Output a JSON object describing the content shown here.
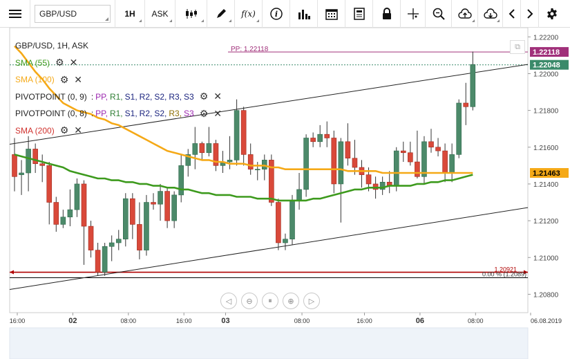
{
  "toolbar": {
    "symbol": "GBP/USD",
    "timeframe": "1H",
    "price_type": "ASK"
  },
  "legend": {
    "title": "GBP/USD, 1H, ASK",
    "sma55": "SMA (55)",
    "sma100": "SMA (100)",
    "pivot9_name": "PIVOTPOINT (0, 9)",
    "pivot8_name": "PIVOTPOINT (0, 8)",
    "pivot_sep": ":",
    "pivot_levels": [
      "PP,",
      "R1,",
      "S1,",
      "R2,",
      "S2,",
      "R3,",
      "S3"
    ],
    "sma200": "SMA (200)"
  },
  "price_tags": {
    "pp": "1.22118",
    "last": "1.22048",
    "sma": "1.21463"
  },
  "pp_label": "PP: 1.22118",
  "fib_label": "0.00 % (1.2089)",
  "fib_overlap_label": "1.20921",
  "colors": {
    "bull": "#4c8a6a",
    "bear": "#d9493a",
    "sma55": "#3d9a1d",
    "sma100": "#f5a917",
    "sma200": "#b00000",
    "pp": "#a0307a",
    "pivot_pp": "#9c27b0",
    "pivot_r": "#2e7d32",
    "pivot_s": "#1a237e",
    "pivot_r3": "#8d6e00"
  },
  "chart_data": {
    "type": "candlestick",
    "symbol": "GBP/USD",
    "timeframe": "1H",
    "ylim": [
      1.207,
      1.2225
    ],
    "y_ticks": [
      "1.22200",
      "1.22000",
      "1.21800",
      "1.21600",
      "1.21400",
      "1.21200",
      "1.21000",
      "1.20800"
    ],
    "x_ticks": [
      "16:00",
      "02",
      "08:00",
      "16:00",
      "03",
      "08:00",
      "16:00",
      "06",
      "08:00",
      "06.08.2019"
    ],
    "candles": [
      {
        "o": 1.2156,
        "h": 1.2165,
        "l": 1.2136,
        "c": 1.2144
      },
      {
        "o": 1.2145,
        "h": 1.2153,
        "l": 1.2134,
        "c": 1.2146
      },
      {
        "o": 1.2146,
        "h": 1.2166,
        "l": 1.2136,
        "c": 1.2159
      },
      {
        "o": 1.2159,
        "h": 1.2162,
        "l": 1.2146,
        "c": 1.2151
      },
      {
        "o": 1.2151,
        "h": 1.2156,
        "l": 1.2141,
        "c": 1.215
      },
      {
        "o": 1.215,
        "h": 1.2152,
        "l": 1.2118,
        "c": 1.213
      },
      {
        "o": 1.213,
        "h": 1.2133,
        "l": 1.2114,
        "c": 1.2118
      },
      {
        "o": 1.2118,
        "h": 1.2126,
        "l": 1.2116,
        "c": 1.2122
      },
      {
        "o": 1.2122,
        "h": 1.2137,
        "l": 1.2117,
        "c": 1.2126
      },
      {
        "o": 1.2126,
        "h": 1.2143,
        "l": 1.2122,
        "c": 1.214
      },
      {
        "o": 1.214,
        "h": 1.2142,
        "l": 1.2096,
        "c": 1.2117
      },
      {
        "o": 1.2117,
        "h": 1.212,
        "l": 1.21,
        "c": 1.2104
      },
      {
        "o": 1.2104,
        "h": 1.2108,
        "l": 1.209,
        "c": 1.2092
      },
      {
        "o": 1.2092,
        "h": 1.2108,
        "l": 1.209,
        "c": 1.2106
      },
      {
        "o": 1.2106,
        "h": 1.2112,
        "l": 1.2098,
        "c": 1.2108
      },
      {
        "o": 1.2108,
        "h": 1.2115,
        "l": 1.2104,
        "c": 1.211
      },
      {
        "o": 1.211,
        "h": 1.2135,
        "l": 1.2106,
        "c": 1.2132
      },
      {
        "o": 1.2132,
        "h": 1.2135,
        "l": 1.211,
        "c": 1.2118
      },
      {
        "o": 1.2118,
        "h": 1.213,
        "l": 1.2099,
        "c": 1.2104
      },
      {
        "o": 1.2104,
        "h": 1.2134,
        "l": 1.2101,
        "c": 1.213
      },
      {
        "o": 1.213,
        "h": 1.2135,
        "l": 1.2126,
        "c": 1.2129
      },
      {
        "o": 1.2129,
        "h": 1.214,
        "l": 1.212,
        "c": 1.2136
      },
      {
        "o": 1.2136,
        "h": 1.2138,
        "l": 1.2116,
        "c": 1.212
      },
      {
        "o": 1.212,
        "h": 1.2136,
        "l": 1.2116,
        "c": 1.2134
      },
      {
        "o": 1.2134,
        "h": 1.2156,
        "l": 1.213,
        "c": 1.215
      },
      {
        "o": 1.215,
        "h": 1.2159,
        "l": 1.2144,
        "c": 1.2156
      },
      {
        "o": 1.2156,
        "h": 1.2171,
        "l": 1.2148,
        "c": 1.2162
      },
      {
        "o": 1.2162,
        "h": 1.2163,
        "l": 1.2153,
        "c": 1.2157
      },
      {
        "o": 1.2157,
        "h": 1.2171,
        "l": 1.2155,
        "c": 1.2162
      },
      {
        "o": 1.2162,
        "h": 1.2164,
        "l": 1.2147,
        "c": 1.215
      },
      {
        "o": 1.215,
        "h": 1.2158,
        "l": 1.2146,
        "c": 1.2152
      },
      {
        "o": 1.2152,
        "h": 1.2166,
        "l": 1.2148,
        "c": 1.2153
      },
      {
        "o": 1.2153,
        "h": 1.2186,
        "l": 1.215,
        "c": 1.218
      },
      {
        "o": 1.218,
        "h": 1.2182,
        "l": 1.215,
        "c": 1.2156
      },
      {
        "o": 1.2156,
        "h": 1.2162,
        "l": 1.2145,
        "c": 1.2148
      },
      {
        "o": 1.2148,
        "h": 1.2152,
        "l": 1.2142,
        "c": 1.2148
      },
      {
        "o": 1.2148,
        "h": 1.2156,
        "l": 1.2142,
        "c": 1.2153
      },
      {
        "o": 1.2153,
        "h": 1.2156,
        "l": 1.2128,
        "c": 1.213
      },
      {
        "o": 1.213,
        "h": 1.2132,
        "l": 1.2104,
        "c": 1.2108
      },
      {
        "o": 1.2108,
        "h": 1.2113,
        "l": 1.2104,
        "c": 1.211
      },
      {
        "o": 1.211,
        "h": 1.2134,
        "l": 1.2107,
        "c": 1.2131
      },
      {
        "o": 1.2131,
        "h": 1.2146,
        "l": 1.2126,
        "c": 1.2137
      },
      {
        "o": 1.2137,
        "h": 1.2167,
        "l": 1.2133,
        "c": 1.2165
      },
      {
        "o": 1.2165,
        "h": 1.2168,
        "l": 1.216,
        "c": 1.2163
      },
      {
        "o": 1.2163,
        "h": 1.2172,
        "l": 1.216,
        "c": 1.2167
      },
      {
        "o": 1.2167,
        "h": 1.2174,
        "l": 1.216,
        "c": 1.2165
      },
      {
        "o": 1.2165,
        "h": 1.2169,
        "l": 1.2135,
        "c": 1.214
      },
      {
        "o": 1.214,
        "h": 1.2165,
        "l": 1.2119,
        "c": 1.2163
      },
      {
        "o": 1.2163,
        "h": 1.2173,
        "l": 1.215,
        "c": 1.2154
      },
      {
        "o": 1.2154,
        "h": 1.2164,
        "l": 1.2145,
        "c": 1.2149
      },
      {
        "o": 1.2149,
        "h": 1.2153,
        "l": 1.2138,
        "c": 1.2145
      },
      {
        "o": 1.2145,
        "h": 1.2149,
        "l": 1.2136,
        "c": 1.214
      },
      {
        "o": 1.214,
        "h": 1.2144,
        "l": 1.2132,
        "c": 1.2137
      },
      {
        "o": 1.2137,
        "h": 1.2144,
        "l": 1.2134,
        "c": 1.2141
      },
      {
        "o": 1.2141,
        "h": 1.2147,
        "l": 1.2135,
        "c": 1.2139
      },
      {
        "o": 1.2139,
        "h": 1.216,
        "l": 1.2136,
        "c": 1.2158
      },
      {
        "o": 1.2158,
        "h": 1.2163,
        "l": 1.2152,
        "c": 1.2157
      },
      {
        "o": 1.2157,
        "h": 1.2163,
        "l": 1.215,
        "c": 1.2152
      },
      {
        "o": 1.2152,
        "h": 1.2169,
        "l": 1.2143,
        "c": 1.2144
      },
      {
        "o": 1.2144,
        "h": 1.2166,
        "l": 1.214,
        "c": 1.2163
      },
      {
        "o": 1.2163,
        "h": 1.217,
        "l": 1.2157,
        "c": 1.216
      },
      {
        "o": 1.216,
        "h": 1.2165,
        "l": 1.2155,
        "c": 1.2158
      },
      {
        "o": 1.2158,
        "h": 1.2162,
        "l": 1.2141,
        "c": 1.2146
      },
      {
        "o": 1.2146,
        "h": 1.2162,
        "l": 1.2141,
        "c": 1.2156
      },
      {
        "o": 1.2156,
        "h": 1.2186,
        "l": 1.2154,
        "c": 1.2184
      },
      {
        "o": 1.2184,
        "h": 1.2195,
        "l": 1.2172,
        "c": 1.2182
      },
      {
        "o": 1.2182,
        "h": 1.2212,
        "l": 1.218,
        "c": 1.2205
      }
    ],
    "sma55": [
      1.2156,
      1.2155,
      1.2154,
      1.2153,
      1.2152,
      1.2151,
      1.215,
      1.2149,
      1.2147,
      1.2146,
      1.2145,
      1.2144,
      1.2143,
      1.2143,
      1.2142,
      1.2142,
      1.2141,
      1.2141,
      1.214,
      1.214,
      1.2139,
      1.2139,
      1.2138,
      1.2138,
      1.2137,
      1.2137,
      1.2136,
      1.2135,
      1.2135,
      1.2134,
      1.2134,
      1.2134,
      1.2133,
      1.2133,
      1.2133,
      1.2132,
      1.2132,
      1.2132,
      1.2131,
      1.2131,
      1.2131,
      1.2131,
      1.2131,
      1.2132,
      1.2132,
      1.2133,
      1.2134,
      1.2135,
      1.2136,
      1.2137,
      1.2137,
      1.2138,
      1.2138,
      1.2138,
      1.2139,
      1.2139,
      1.2139,
      1.2139,
      1.214,
      1.214,
      1.2141,
      1.2141,
      1.2142,
      1.2142,
      1.2143,
      1.2144,
      1.2145
    ],
    "sma100": [
      1.2215,
      1.2211,
      1.2206,
      1.2201,
      1.2197,
      1.2192,
      1.2188,
      1.2184,
      1.2182,
      1.218,
      1.2179,
      1.2178,
      1.2176,
      1.2175,
      1.2173,
      1.2172,
      1.217,
      1.2168,
      1.2166,
      1.2164,
      1.2162,
      1.216,
      1.2158,
      1.2157,
      1.2156,
      1.2155,
      1.2154,
      1.2153,
      1.2153,
      1.2152,
      1.2152,
      1.2151,
      1.2151,
      1.2151,
      1.215,
      1.215,
      1.215,
      1.2149,
      1.2149,
      1.2148,
      1.2148,
      1.2148,
      1.2148,
      1.2148,
      1.2148,
      1.2148,
      1.2148,
      1.2148,
      1.2147,
      1.2147,
      1.2147,
      1.2147,
      1.2147,
      1.2146,
      1.2146,
      1.2146,
      1.2146,
      1.2146,
      1.2146,
      1.2146,
      1.2146,
      1.2146,
      1.2146,
      1.2146,
      1.2146,
      1.2146,
      1.2146
    ],
    "channel_upper": {
      "from": [
        0,
        1.2162
      ],
      "to": [
        67,
        1.2201
      ]
    },
    "channel_lower": {
      "from": [
        0,
        1.2083
      ],
      "to": [
        67,
        1.2123
      ]
    },
    "pp_level": 1.22118,
    "last_level": 1.22048,
    "fib_level": 1.2092,
    "fib_base_level": 1.2089
  }
}
